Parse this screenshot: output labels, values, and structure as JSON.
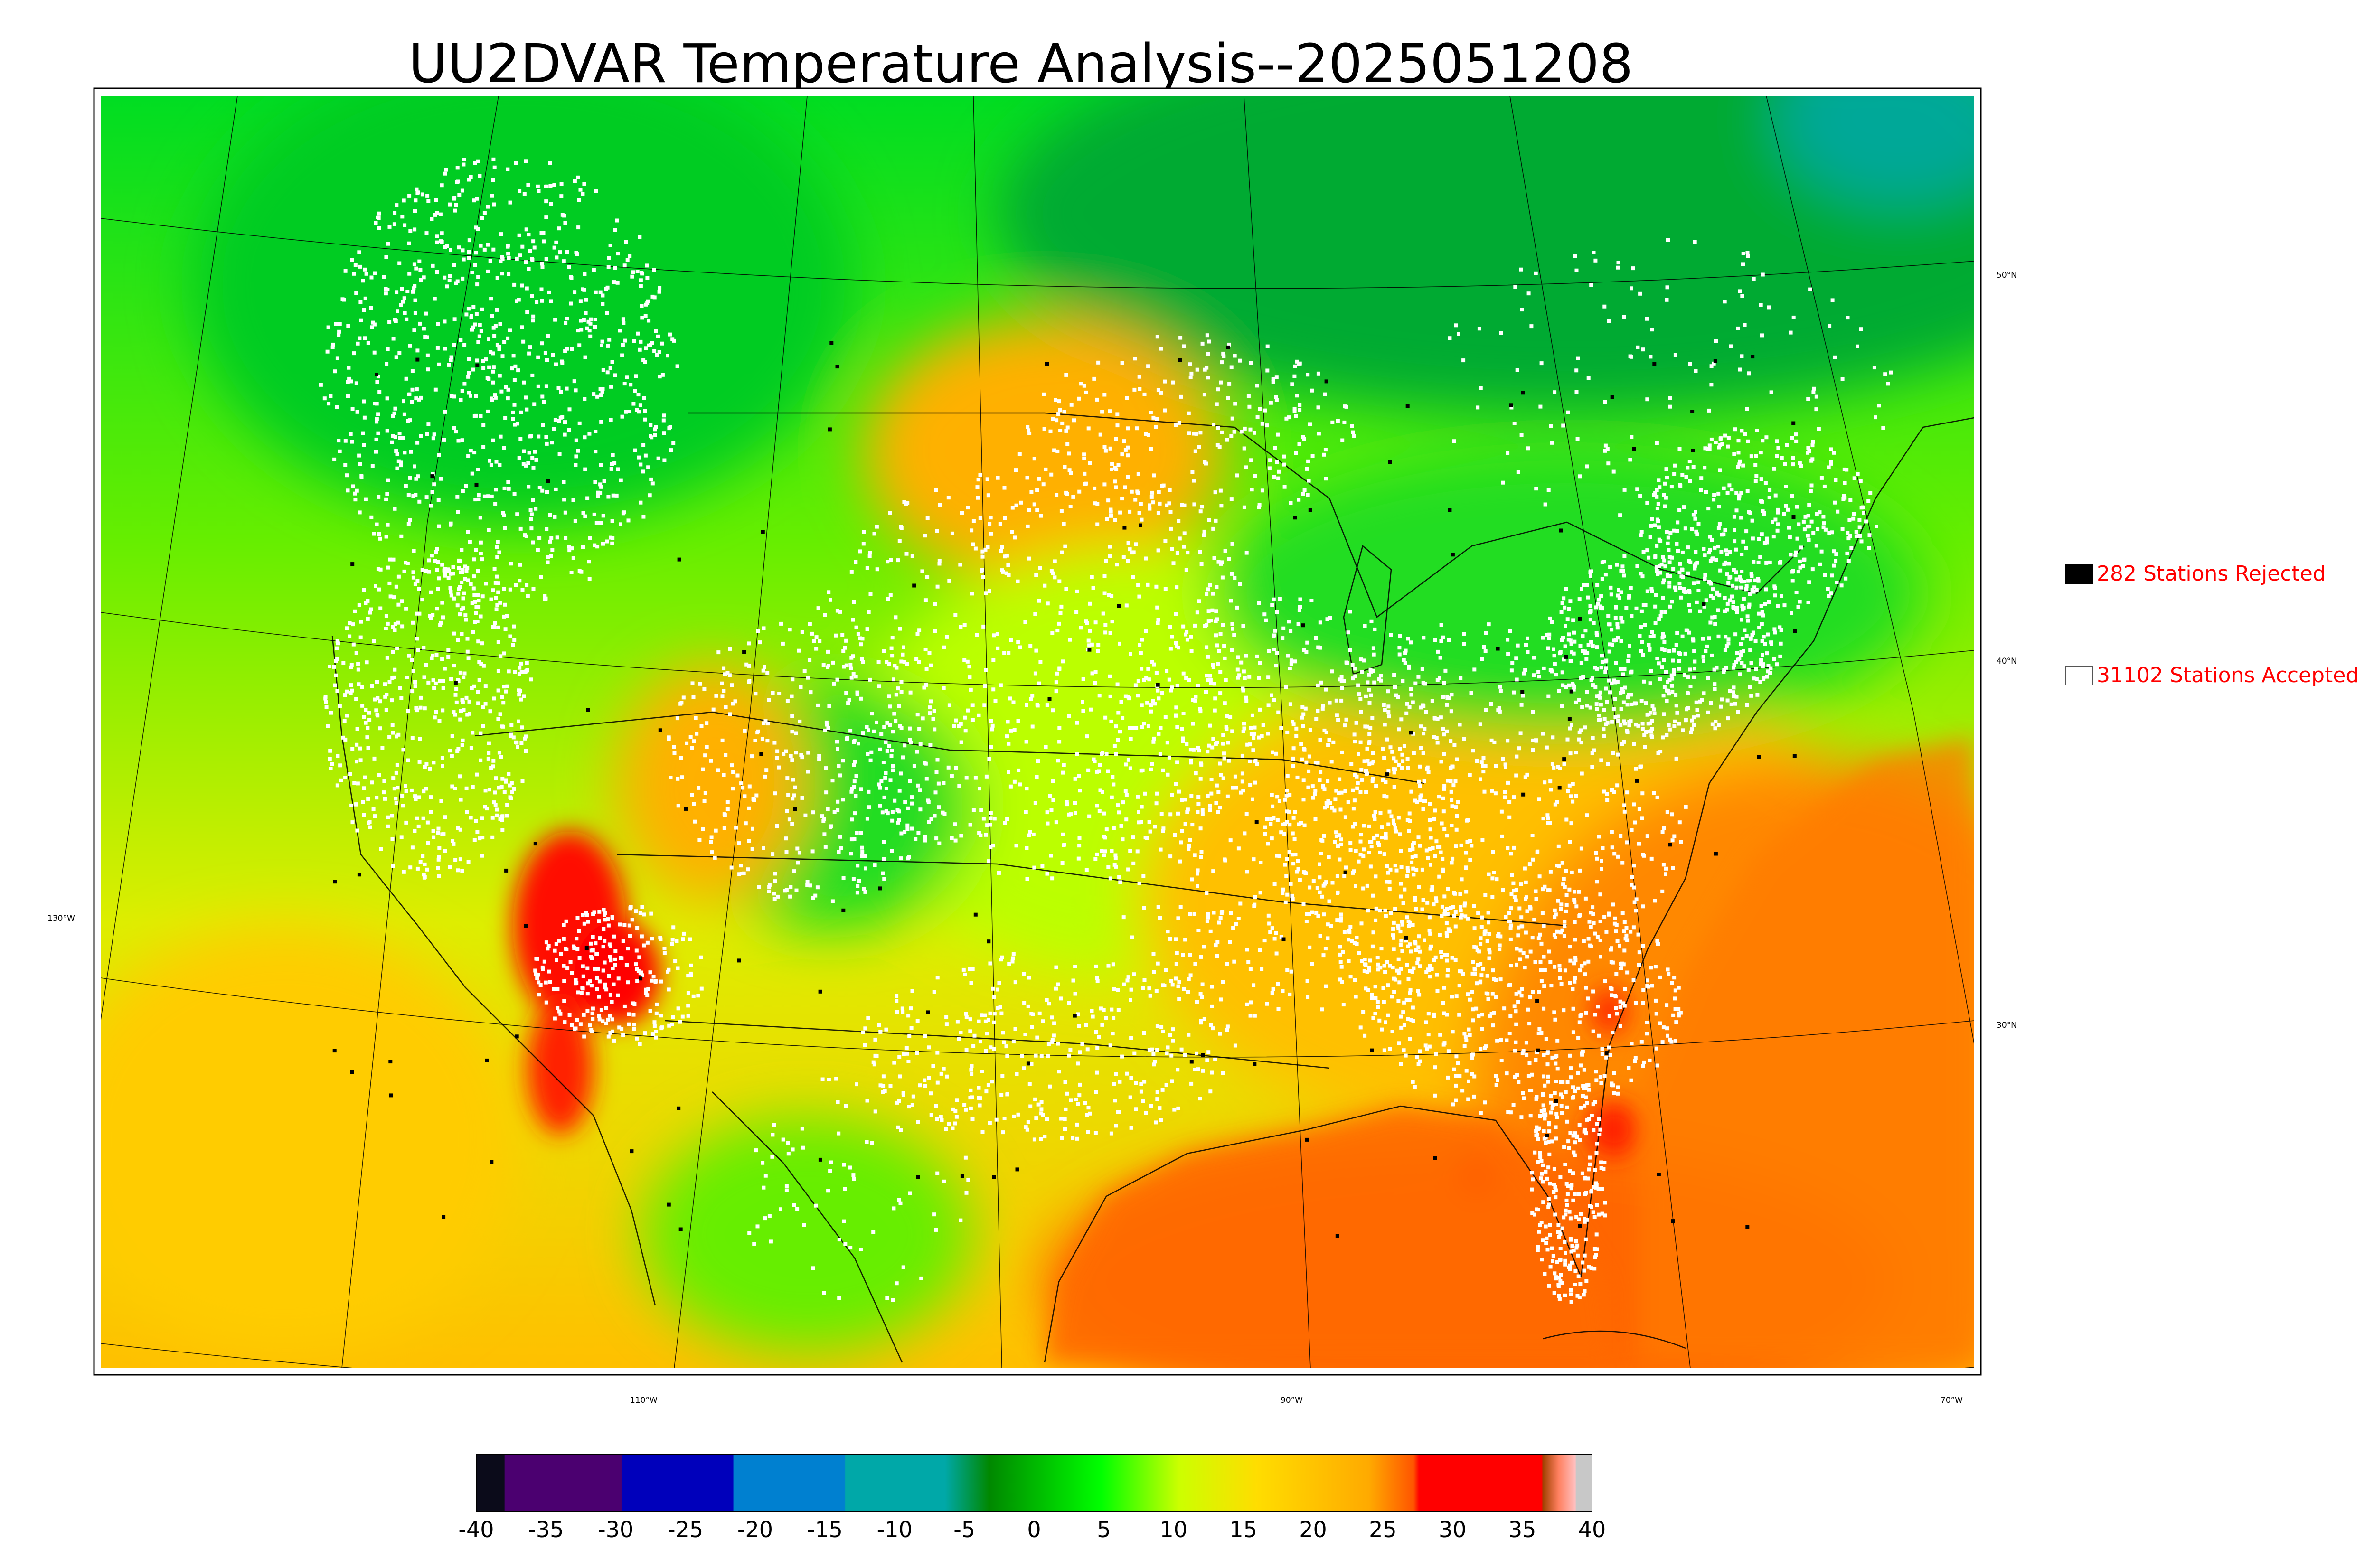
{
  "title": "UU2DVAR Temperature Analysis--2025051208",
  "legend": {
    "rejected": "282 Stations Rejected",
    "accepted": "31102 Stations Accepted"
  },
  "lat_labels": [
    "50°N",
    "40°N",
    "30°N"
  ],
  "lon_labels": [
    "130°W",
    "110°W",
    "90°W",
    "70°W"
  ],
  "colorbar": {
    "ticks": [
      "-40",
      "-35",
      "-30",
      "-25",
      "-20",
      "-15",
      "-10",
      "-5",
      "0",
      "5",
      "10",
      "15",
      "20",
      "25",
      "30",
      "35",
      "40"
    ],
    "colors": [
      "#0b0b1a",
      "#4b0070",
      "#4b0070",
      "#0000bb",
      "#0000bb",
      "#0080d0",
      "#0080d0",
      "#00a8a8",
      "#00a8a8",
      "#008800",
      "#00cc00",
      "#00ff00",
      "#ccff00",
      "#ffdd00",
      "#ffaa00",
      "#ff5500",
      "#ff0000",
      "#ff0000",
      "#a04000",
      "#ff8060",
      "#ffc0c0",
      "#c8c8c8"
    ]
  },
  "colors": {
    "ocean_warm": "#ff7a00",
    "land_cool": "#22cc22",
    "north_cold": "#00aa33",
    "station_accepted": "#ffffff",
    "station_rejected": "#000000",
    "legend_text": "#ff0000"
  }
}
